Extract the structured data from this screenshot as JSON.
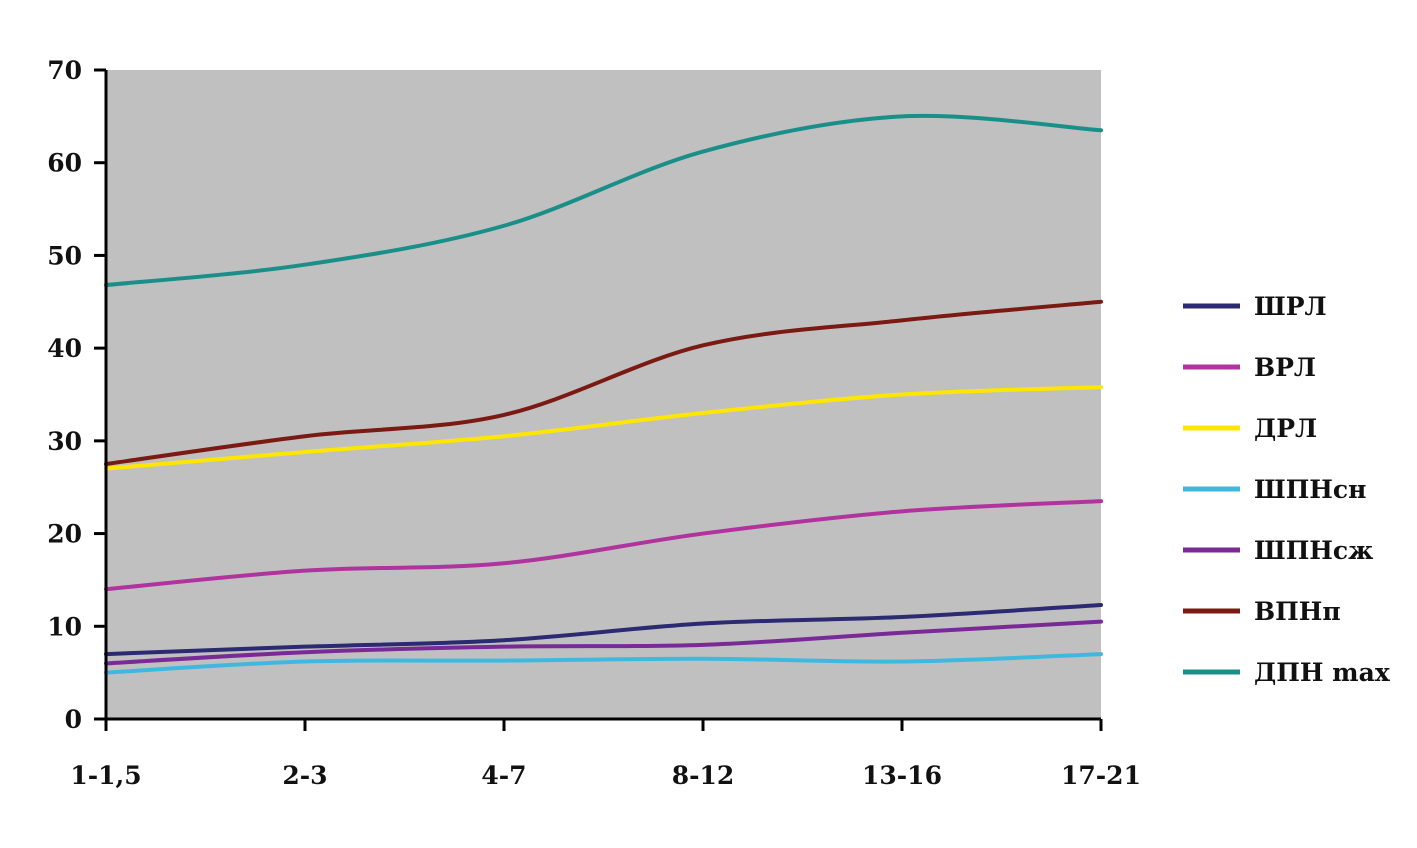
{
  "chart_data": {
    "type": "line",
    "title": "",
    "xlabel": "",
    "ylabel": "",
    "categories": [
      "1-1,5",
      "2-3",
      "4-7",
      "8-12",
      "13-16",
      "17-21"
    ],
    "ylim": [
      0,
      70
    ],
    "y_ticks": [
      "0",
      "10",
      "20",
      "30",
      "40",
      "50",
      "60",
      "70"
    ],
    "grid": false,
    "background": "#c0c0c0",
    "legend_position": "right",
    "series": [
      {
        "name": "ШРЛ",
        "color": "#2b2a72",
        "values": [
          7,
          7.8,
          8.5,
          10.3,
          11,
          12.3
        ]
      },
      {
        "name": "ВРЛ",
        "color": "#b0339e",
        "values": [
          14,
          16,
          16.8,
          20,
          22.4,
          23.5
        ]
      },
      {
        "name": "ДРЛ",
        "color": "#ffe600",
        "values": [
          27,
          28.8,
          30.5,
          33,
          35,
          35.8
        ]
      },
      {
        "name": "ШПНсн",
        "color": "#3fb8e0",
        "values": [
          5,
          6.2,
          6.3,
          6.5,
          6.2,
          7
        ]
      },
      {
        "name": "ШПНсж",
        "color": "#7a2a96",
        "values": [
          6,
          7.2,
          7.8,
          8,
          9.3,
          10.5
        ]
      },
      {
        "name": "ВПНп",
        "color": "#7a1a12",
        "values": [
          27.5,
          30.5,
          32.8,
          40.3,
          43,
          45
        ]
      },
      {
        "name": "ДПН max",
        "color": "#1a8f8a",
        "values": [
          46.8,
          49,
          53.2,
          61.2,
          65,
          63.5
        ]
      }
    ]
  }
}
